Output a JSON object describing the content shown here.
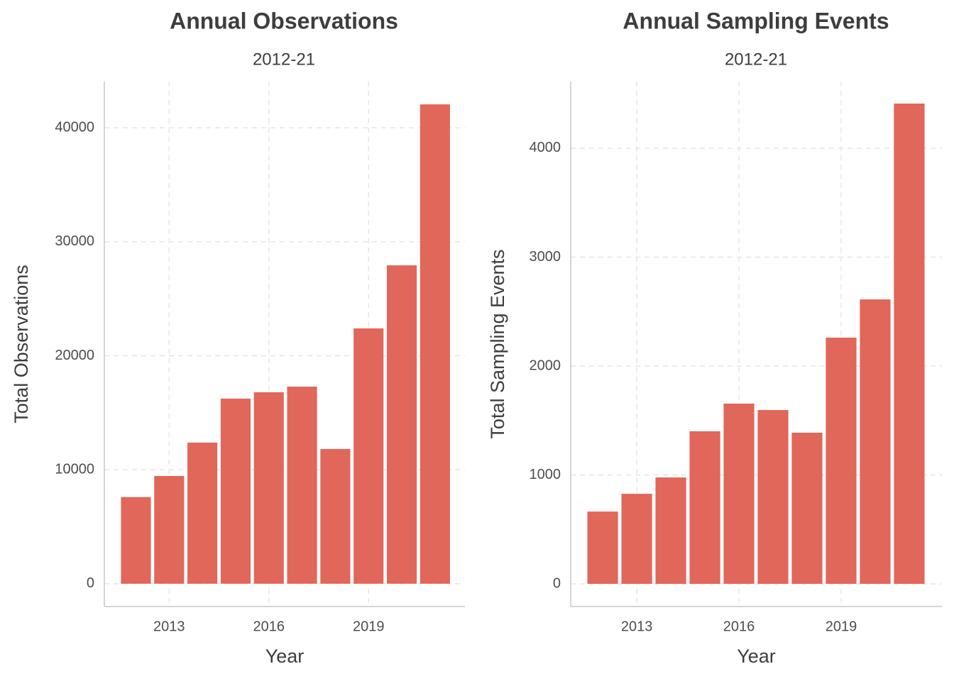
{
  "chart_data": [
    {
      "type": "bar",
      "title": "Annual Observations",
      "subtitle": "2012-21",
      "x_label": "Year",
      "y_label": "Total Observations",
      "x": [
        2012,
        2013,
        2014,
        2015,
        2016,
        2017,
        2018,
        2019,
        2020,
        2021
      ],
      "values": [
        7600,
        9450,
        12380,
        16240,
        16800,
        17290,
        11820,
        22400,
        27930,
        42050
      ],
      "color": "#e0675a",
      "xlim": [
        2011.05,
        2021.9
      ],
      "xticks": [
        2013,
        2016,
        2019
      ],
      "ylim": [
        -2000,
        44050
      ],
      "yticks": [
        0,
        10000,
        20000,
        30000,
        40000
      ],
      "grid": true
    },
    {
      "type": "bar",
      "title": "Annual Sampling Events",
      "subtitle": "2012-21",
      "x_label": "Year",
      "y_label": "Total Sampling Events",
      "x": [
        2012,
        2013,
        2014,
        2015,
        2016,
        2017,
        2018,
        2019,
        2020,
        2021
      ],
      "values": [
        664,
        827,
        977,
        1401,
        1655,
        1596,
        1388,
        2261,
        2612,
        4410
      ],
      "color": "#e0675a",
      "xlim": [
        2011.06,
        2021.96
      ],
      "xticks": [
        2013,
        2016,
        2019
      ],
      "ylim": [
        -208,
        4612
      ],
      "yticks": [
        0,
        1000,
        2000,
        3000,
        4000
      ],
      "grid": true
    }
  ]
}
